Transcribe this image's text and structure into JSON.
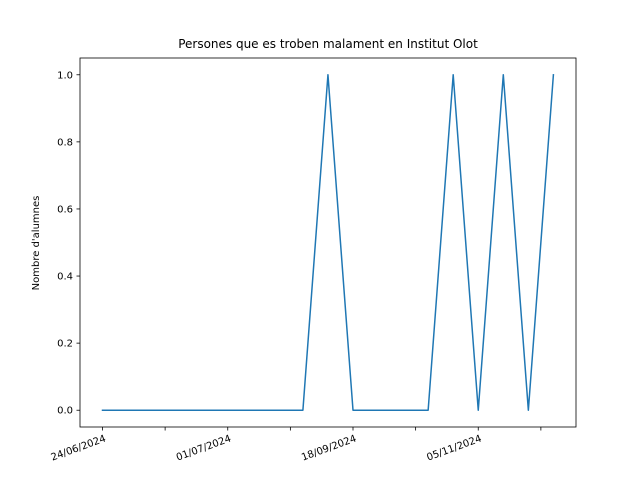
{
  "chart_data": {
    "type": "line",
    "title": "Persones que es troben malament en Institut Olot",
    "xlabel": "",
    "ylabel": "Nombre d'alumnes",
    "x_tick_labels": [
      "24/06/2024",
      "01/07/2024",
      "18/09/2024",
      "05/11/2024"
    ],
    "y_ticks": [
      "0.0",
      "0.2",
      "0.4",
      "0.6",
      "0.8",
      "1.0"
    ],
    "ylim": [
      -0.05,
      1.05
    ],
    "grid": false,
    "series": [
      {
        "color": "#1f77b4",
        "values": [
          0,
          0,
          0,
          0,
          0,
          0,
          0,
          0,
          0,
          1,
          0,
          0,
          0,
          0,
          1,
          0,
          1,
          0,
          1
        ]
      }
    ]
  }
}
